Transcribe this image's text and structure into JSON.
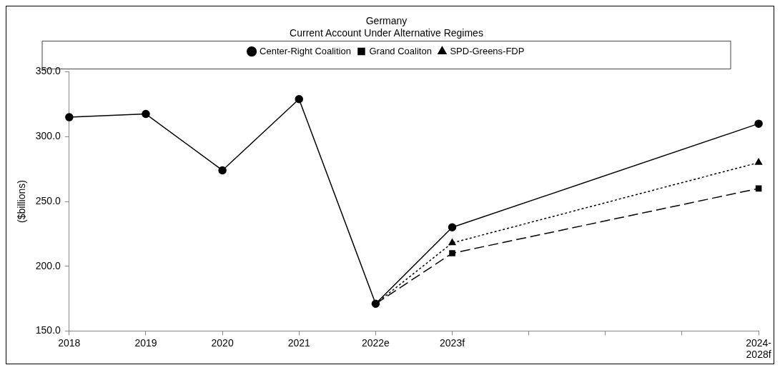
{
  "chart_data": {
    "type": "line",
    "title": "Germany",
    "subtitle": "Current Account Under Alternative Regimes",
    "ylabel": "($billions)",
    "categories": [
      "2018",
      "2019",
      "2020",
      "2021",
      "2022e",
      "2023f",
      null,
      null,
      null,
      "2024-\n2028f"
    ],
    "series": [
      {
        "name": "Center-Right Coalition",
        "color": "#000000",
        "marker": "circle",
        "line_style": "solid",
        "values": [
          315,
          317.5,
          274,
          329,
          171,
          230,
          null,
          null,
          null,
          310
        ]
      },
      {
        "name": "Grand Coaliton",
        "color": "#000000",
        "marker": "square",
        "line_style": "dashed",
        "values": [
          null,
          null,
          null,
          null,
          171,
          210,
          null,
          null,
          null,
          260
        ]
      },
      {
        "name": "SPD-Greens-FDP",
        "color": "#000000",
        "marker": "triangle",
        "line_style": "dotted",
        "values": [
          null,
          null,
          null,
          null,
          171,
          218,
          null,
          null,
          null,
          280
        ]
      }
    ],
    "ylim": [
      150,
      350
    ],
    "yticks": [
      {
        "value": 150,
        "label": "150.0"
      },
      {
        "value": 200,
        "label": "200.0"
      },
      {
        "value": 250,
        "label": "250.0"
      },
      {
        "value": 300,
        "label": "300.0"
      },
      {
        "value": 350,
        "label": "350.0"
      }
    ],
    "grid": false,
    "legend": "top"
  }
}
